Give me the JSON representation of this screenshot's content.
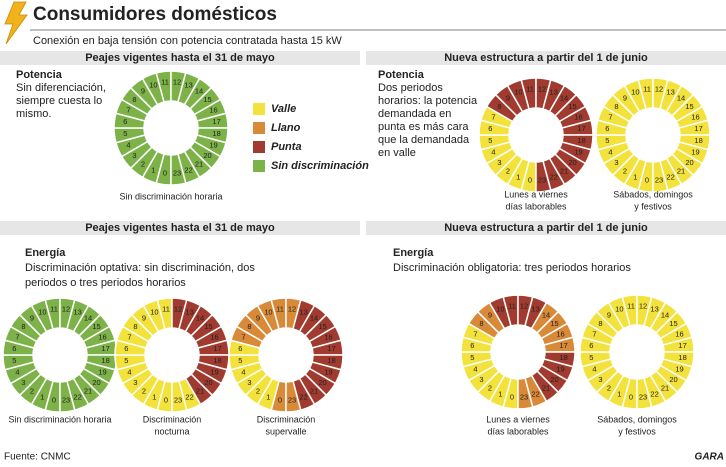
{
  "header": {
    "title": "Consumidores domésticos",
    "subtitle": "Conexión en baja tensión con potencia contratada hasta 15 kW"
  },
  "legend": [
    {
      "label": "Valle",
      "color": "#f3e23b"
    },
    {
      "label": "Llano",
      "color": "#d98a38"
    },
    {
      "label": "Punta",
      "color": "#a23b2f"
    },
    {
      "label": "Sin discriminación",
      "color": "#7db249"
    }
  ],
  "hour_labels": [
    0,
    1,
    2,
    3,
    4,
    5,
    6,
    7,
    8,
    9,
    10,
    11,
    12,
    13,
    14,
    15,
    16,
    17,
    18,
    19,
    20,
    21,
    22,
    23
  ],
  "sections": [
    {
      "heading": "Peajes vigentes hasta el 31 de mayo",
      "title": "Potencia",
      "text": [
        "Sin diferenciación,",
        "siempre cuesta lo",
        "mismo."
      ],
      "clocks": [
        {
          "caption": [
            "Sin discriminación  horaria"
          ],
          "periods": [
            3,
            3,
            3,
            3,
            3,
            3,
            3,
            3,
            3,
            3,
            3,
            3,
            3,
            3,
            3,
            3,
            3,
            3,
            3,
            3,
            3,
            3,
            3,
            3
          ]
        }
      ]
    },
    {
      "heading": "Nueva estructura a partir del 1 de junio",
      "title": "Potencia",
      "text": [
        "Dos periodos",
        "horarios: la potencia",
        "demandada en",
        "punta es más cara",
        "que la demandada",
        "en valle"
      ],
      "clocks": [
        {
          "caption": [
            "Lunes a viernes",
            "días laborables"
          ],
          "periods": [
            0,
            0,
            0,
            0,
            0,
            0,
            0,
            0,
            2,
            2,
            2,
            2,
            2,
            2,
            2,
            2,
            2,
            2,
            2,
            2,
            2,
            2,
            2,
            2
          ]
        },
        {
          "caption": [
            "Sábados, domingos",
            "y festivos"
          ],
          "periods": [
            0,
            0,
            0,
            0,
            0,
            0,
            0,
            0,
            0,
            0,
            0,
            0,
            0,
            0,
            0,
            0,
            0,
            0,
            0,
            0,
            0,
            0,
            0,
            0
          ]
        }
      ]
    },
    {
      "heading": "Peajes vigentes hasta el 31 de mayo",
      "title": "Energía",
      "text": [
        "Discriminación optativa: sin discriminación, dos",
        "periodos o tres periodos horarios"
      ],
      "clocks": [
        {
          "caption": [
            "Sin discriminación  horaria"
          ],
          "periods": [
            3,
            3,
            3,
            3,
            3,
            3,
            3,
            3,
            3,
            3,
            3,
            3,
            3,
            3,
            3,
            3,
            3,
            3,
            3,
            3,
            3,
            3,
            3,
            3
          ]
        },
        {
          "caption": [
            "Discriminación",
            "nocturna"
          ],
          "periods": [
            0,
            0,
            0,
            0,
            0,
            0,
            0,
            0,
            0,
            0,
            0,
            0,
            2,
            2,
            2,
            2,
            2,
            2,
            2,
            2,
            2,
            2,
            0,
            0
          ]
        },
        {
          "caption": [
            "Discriminación",
            "supervalle"
          ],
          "periods": [
            1,
            0,
            0,
            0,
            0,
            0,
            0,
            1,
            1,
            1,
            1,
            1,
            1,
            2,
            2,
            2,
            2,
            2,
            2,
            2,
            2,
            2,
            2,
            1
          ]
        }
      ]
    },
    {
      "heading": "Nueva estructura a partir del 1 de junio",
      "title": "Energía",
      "text": [
        "Discriminación obligatoria: tres periodos horarios"
      ],
      "clocks": [
        {
          "caption": [
            "Lunes a viernes",
            "días laborables"
          ],
          "periods": [
            0,
            0,
            0,
            0,
            0,
            0,
            0,
            0,
            1,
            1,
            2,
            2,
            2,
            2,
            1,
            1,
            1,
            1,
            2,
            2,
            2,
            2,
            1,
            1
          ]
        },
        {
          "caption": [
            "Sábados, domingos",
            "y festivos"
          ],
          "periods": [
            0,
            0,
            0,
            0,
            0,
            0,
            0,
            0,
            0,
            0,
            0,
            0,
            0,
            0,
            0,
            0,
            0,
            0,
            0,
            0,
            0,
            0,
            0,
            0
          ]
        }
      ]
    }
  ],
  "footer": {
    "source": "Fuente: CNMC",
    "brand": "GARA"
  }
}
